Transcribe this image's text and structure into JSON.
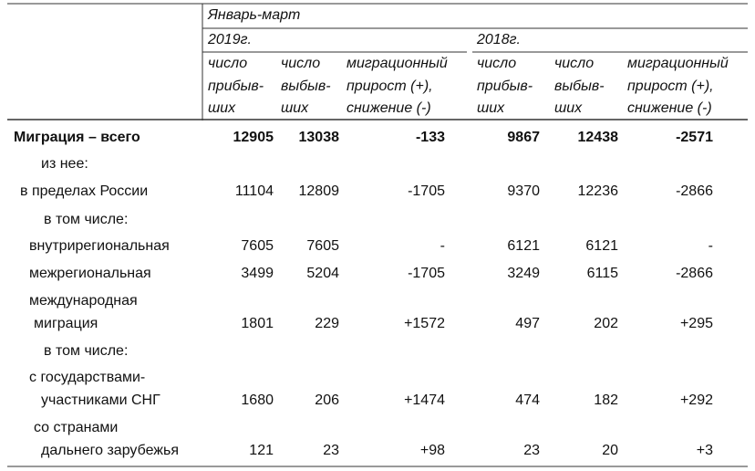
{
  "header": {
    "period": "Январь-март",
    "years": [
      "2019г.",
      "2018г."
    ],
    "columns": [
      [
        "число",
        "прибыв-",
        "ших"
      ],
      [
        "число",
        "выбыв-",
        "ших"
      ],
      [
        "миграционный",
        "прирост (+),",
        "снижение (-)"
      ],
      [
        "число",
        "прибыв-",
        "ших"
      ],
      [
        "число",
        "выбыв-",
        "ших"
      ],
      [
        "миграционный",
        "прирост (+),",
        "снижение (-)"
      ]
    ]
  },
  "table": {
    "rows": [
      {
        "label": [
          "Миграция – всего"
        ],
        "values": [
          "12905",
          "13038",
          "-133",
          "9867",
          "12438",
          "-2571"
        ]
      },
      {
        "label": [
          "из нее:"
        ],
        "values": []
      },
      {
        "label": [
          "в пределах России"
        ],
        "values": [
          "11104",
          "12809",
          "-1705",
          "9370",
          "12236",
          "-2866"
        ]
      },
      {
        "label": [
          "в том числе:"
        ],
        "values": []
      },
      {
        "label": [
          "внутрирегиональная"
        ],
        "values": [
          "7605",
          "7605",
          "-",
          "6121",
          "6121",
          "-"
        ]
      },
      {
        "label": [
          "межрегиональная"
        ],
        "values": [
          "3499",
          "5204",
          "-1705",
          "3249",
          "6115",
          "-2866"
        ]
      },
      {
        "label": [
          "международная",
          "миграция"
        ],
        "values": [
          "1801",
          "229",
          "+1572",
          "497",
          "202",
          "+295"
        ]
      },
      {
        "label": [
          "в том числе:"
        ],
        "values": []
      },
      {
        "label": [
          "с государствами-",
          "участниками СНГ"
        ],
        "values": [
          "1680",
          "206",
          "+1474",
          "474",
          "182",
          "+292"
        ]
      },
      {
        "label": [
          "со странами",
          "дальнего зарубежья"
        ],
        "values": [
          "121",
          "23",
          "+98",
          "23",
          "20",
          "+3"
        ]
      }
    ]
  }
}
